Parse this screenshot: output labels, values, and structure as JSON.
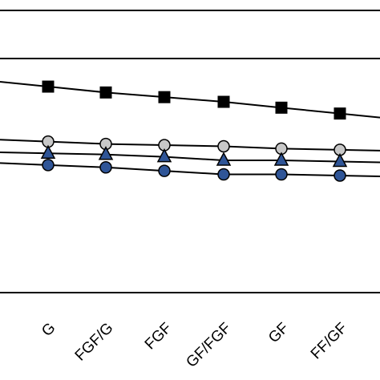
{
  "chart_data": {
    "type": "line",
    "title": "",
    "xlabel": "",
    "ylabel": "",
    "categories": [
      "G",
      "FGF/G",
      "FGF",
      "GF/FGF",
      "GF",
      "FF/GF"
    ],
    "ylim": [
      0,
      100
    ],
    "grid": false,
    "legend": "none",
    "series": [
      {
        "marker": "square",
        "color": "#000000",
        "values": [
          88,
          85.5,
          83.5,
          81.5,
          79,
          76.5
        ]
      },
      {
        "marker": "circle",
        "color": "#c8c8c8",
        "values": [
          64.5,
          63.5,
          63,
          62.5,
          61.5,
          61
        ]
      },
      {
        "marker": "triangle",
        "color": "#2f5597",
        "values": [
          59.5,
          59,
          58,
          56.5,
          56.5,
          56
        ]
      },
      {
        "marker": "circle",
        "color": "#2f5597",
        "values": [
          54.5,
          53.5,
          52,
          50.5,
          50.5,
          50
        ]
      }
    ]
  }
}
